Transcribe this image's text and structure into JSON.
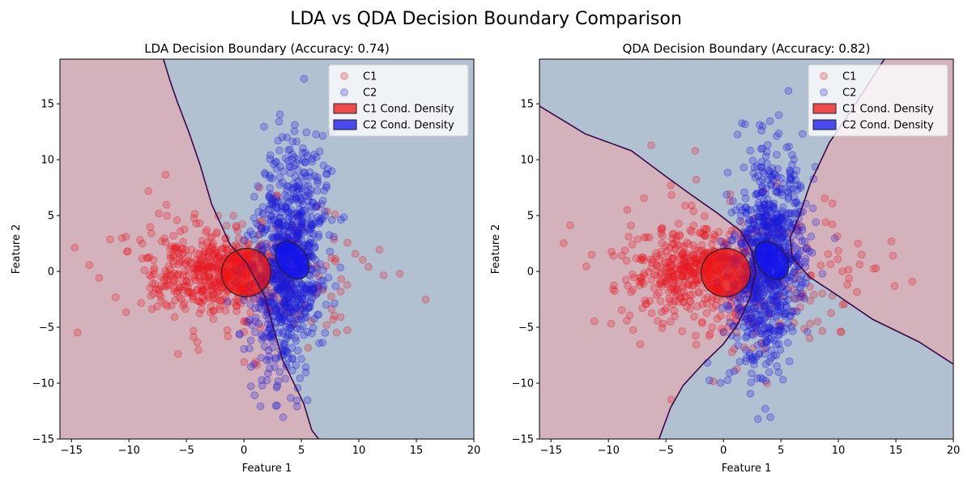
{
  "suptitle": "LDA vs QDA Decision Boundary Comparison",
  "chart_data": [
    {
      "type": "scatter",
      "title": "LDA Decision Boundary (Accuracy: 0.74)",
      "xlabel": "Feature 1",
      "ylabel": "Feature 2",
      "xlim": [
        -16,
        20
      ],
      "ylim": [
        -15,
        19
      ],
      "xticks": [
        -15,
        -10,
        -5,
        0,
        5,
        10,
        15,
        20
      ],
      "yticks": [
        -15,
        -10,
        -5,
        0,
        5,
        10,
        15
      ],
      "grid": false,
      "legend_position": "upper right",
      "legend": [
        "C1",
        "C2",
        "C1 Cond. Density",
        "C2 Cond. Density"
      ],
      "regions": [
        {
          "class": "C1",
          "color": "#d3b2bc"
        },
        {
          "class": "C2",
          "color": "#b2c1d2"
        }
      ],
      "boundary": [
        [
          6.5,
          -15
        ],
        [
          5.9,
          -14.2
        ],
        [
          5.2,
          -11.8
        ],
        [
          3.4,
          -8
        ],
        [
          2.6,
          -5.2
        ],
        [
          1.8,
          -2.2
        ],
        [
          0.2,
          0.8
        ],
        [
          -1.2,
          2.4
        ],
        [
          -2.8,
          6
        ],
        [
          -3.8,
          9.5
        ],
        [
          -4.8,
          12.5
        ],
        [
          -5.8,
          15.2
        ],
        [
          -6.4,
          17
        ],
        [
          -7,
          19
        ]
      ],
      "ellipses": [
        {
          "class": "C1",
          "center": [
            0.2,
            -0.1
          ],
          "width": 4.3,
          "height": 4.3,
          "angle": 20
        },
        {
          "class": "C2",
          "center": [
            4.2,
            1.0
          ],
          "width": 3.6,
          "height": 2.6,
          "angle": -55
        }
      ],
      "series": [
        {
          "name": "C1",
          "color": "#e8181f",
          "center": [
            0.3,
            -0.2
          ],
          "spread": [
            7.5,
            3.2
          ],
          "cluster": [
            -2.5,
            0.2
          ],
          "n": 600
        },
        {
          "name": "C2",
          "color": "#1a1ad8",
          "center": [
            3.9,
            0.8
          ],
          "spread": [
            1.6,
            4.8
          ],
          "n": 900
        }
      ]
    },
    {
      "type": "scatter",
      "title": "QDA Decision Boundary (Accuracy: 0.82)",
      "xlabel": "Feature 1",
      "ylabel": "Feature 2",
      "xlim": [
        -16,
        20
      ],
      "ylim": [
        -15,
        19
      ],
      "xticks": [
        -15,
        -10,
        -5,
        0,
        5,
        10,
        15,
        20
      ],
      "yticks": [
        -15,
        -10,
        -5,
        0,
        5,
        10,
        15
      ],
      "grid": false,
      "legend_position": "upper right",
      "legend": [
        "C1",
        "C2",
        "C1 Cond. Density",
        "C2 Cond. Density"
      ],
      "regions": [
        {
          "class": "C1",
          "color": "#d3b2bc"
        },
        {
          "class": "C2",
          "color": "#b2c1d2"
        }
      ],
      "boundaries": [
        [
          [
            -16,
            14.8
          ],
          [
            -12,
            12.3
          ],
          [
            -8,
            10.8
          ],
          [
            -5,
            8.5
          ],
          [
            -3,
            7.0
          ],
          [
            -0.5,
            5.2
          ],
          [
            1.5,
            3.6
          ],
          [
            2.5,
            1.8
          ],
          [
            2.8,
            0
          ],
          [
            2.3,
            -2.4
          ],
          [
            1.2,
            -4.8
          ],
          [
            0,
            -6.5
          ],
          [
            -1.8,
            -8.3
          ],
          [
            -3.5,
            -10.2
          ],
          [
            -4.6,
            -12.2
          ],
          [
            -5.6,
            -15
          ]
        ],
        [
          [
            20,
            -8.3
          ],
          [
            17,
            -6.3
          ],
          [
            13,
            -4.3
          ],
          [
            10,
            -2.2
          ],
          [
            7.5,
            -0.5
          ],
          [
            6.0,
            1.2
          ],
          [
            5.8,
            3.0
          ],
          [
            6.6,
            5.0
          ],
          [
            7.6,
            8.0
          ],
          [
            9.2,
            11.5
          ],
          [
            11.5,
            15
          ],
          [
            14,
            19
          ]
        ]
      ],
      "ellipses": [
        {
          "class": "C1",
          "center": [
            0.2,
            -0.1
          ],
          "width": 4.3,
          "height": 4.3,
          "angle": 20
        },
        {
          "class": "C2",
          "center": [
            4.2,
            1.0
          ],
          "width": 3.6,
          "height": 2.6,
          "angle": -55
        }
      ],
      "series": [
        {
          "name": "C1",
          "color": "#e8181f",
          "center": [
            0.3,
            -0.2
          ],
          "spread": [
            7.5,
            3.2
          ],
          "cluster": [
            -2.5,
            0.2
          ],
          "n": 600
        },
        {
          "name": "C2",
          "color": "#1a1ad8",
          "center": [
            3.9,
            0.8
          ],
          "spread": [
            1.6,
            4.8
          ],
          "n": 900
        }
      ]
    }
  ]
}
